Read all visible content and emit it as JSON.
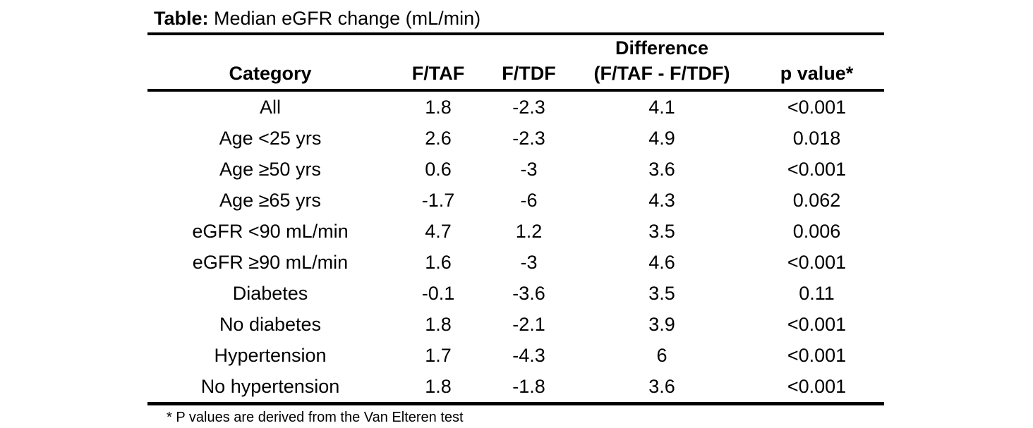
{
  "table": {
    "title_label": "Table:",
    "title_text": "Median eGFR change (mL/min)",
    "columns": [
      {
        "label": "Category"
      },
      {
        "label": "F/TAF"
      },
      {
        "label": "F/TDF"
      },
      {
        "label": "Difference",
        "label2": "(F/TAF - F/TDF)"
      },
      {
        "label": "p value*"
      }
    ],
    "rows": [
      {
        "category": "All",
        "ftaf": "1.8",
        "ftdf": "-2.3",
        "difference": "4.1",
        "p_value": "<0.001"
      },
      {
        "category": "Age <25 yrs",
        "ftaf": "2.6",
        "ftdf": "-2.3",
        "difference": "4.9",
        "p_value": "0.018"
      },
      {
        "category": "Age ≥50 yrs",
        "ftaf": "0.6",
        "ftdf": "-3",
        "difference": "3.6",
        "p_value": "<0.001"
      },
      {
        "category": "Age ≥65 yrs",
        "ftaf": "-1.7",
        "ftdf": "-6",
        "difference": "4.3",
        "p_value": "0.062"
      },
      {
        "category": "eGFR <90 mL/min",
        "ftaf": "4.7",
        "ftdf": "1.2",
        "difference": "3.5",
        "p_value": "0.006"
      },
      {
        "category": "eGFR ≥90 mL/min",
        "ftaf": "1.6",
        "ftdf": "-3",
        "difference": "4.6",
        "p_value": "<0.001"
      },
      {
        "category": "Diabetes",
        "ftaf": "-0.1",
        "ftdf": "-3.6",
        "difference": "3.5",
        "p_value": "0.11"
      },
      {
        "category": "No diabetes",
        "ftaf": "1.8",
        "ftdf": "-2.1",
        "difference": "3.9",
        "p_value": "<0.001"
      },
      {
        "category": "Hypertension",
        "ftaf": "1.7",
        "ftdf": "-4.3",
        "difference": "6",
        "p_value": "<0.001"
      },
      {
        "category": "No hypertension",
        "ftaf": "1.8",
        "ftdf": "-1.8",
        "difference": "3.6",
        "p_value": "<0.001"
      }
    ],
    "footnote": "* P values are derived from the Van Elteren test"
  },
  "chart_data": {
    "type": "table",
    "title": "Table: Median eGFR change (mL/min)",
    "columns": [
      "Category",
      "F/TAF",
      "F/TDF",
      "Difference (F/TAF - F/TDF)",
      "p value*"
    ],
    "rows": [
      [
        "All",
        1.8,
        -2.3,
        4.1,
        "<0.001"
      ],
      [
        "Age <25 yrs",
        2.6,
        -2.3,
        4.9,
        "0.018"
      ],
      [
        "Age ≥50 yrs",
        0.6,
        -3,
        3.6,
        "<0.001"
      ],
      [
        "Age ≥65 yrs",
        -1.7,
        -6,
        4.3,
        "0.062"
      ],
      [
        "eGFR <90 mL/min",
        4.7,
        1.2,
        3.5,
        "0.006"
      ],
      [
        "eGFR ≥90 mL/min",
        1.6,
        -3,
        4.6,
        "<0.001"
      ],
      [
        "Diabetes",
        -0.1,
        -3.6,
        3.5,
        "0.11"
      ],
      [
        "No diabetes",
        1.8,
        -2.1,
        3.9,
        "<0.001"
      ],
      [
        "Hypertension",
        1.7,
        -4.3,
        6,
        "<0.001"
      ],
      [
        "No hypertension",
        1.8,
        -1.8,
        3.6,
        "<0.001"
      ]
    ],
    "footnote": "* P values are derived from the Van Elteren test"
  }
}
